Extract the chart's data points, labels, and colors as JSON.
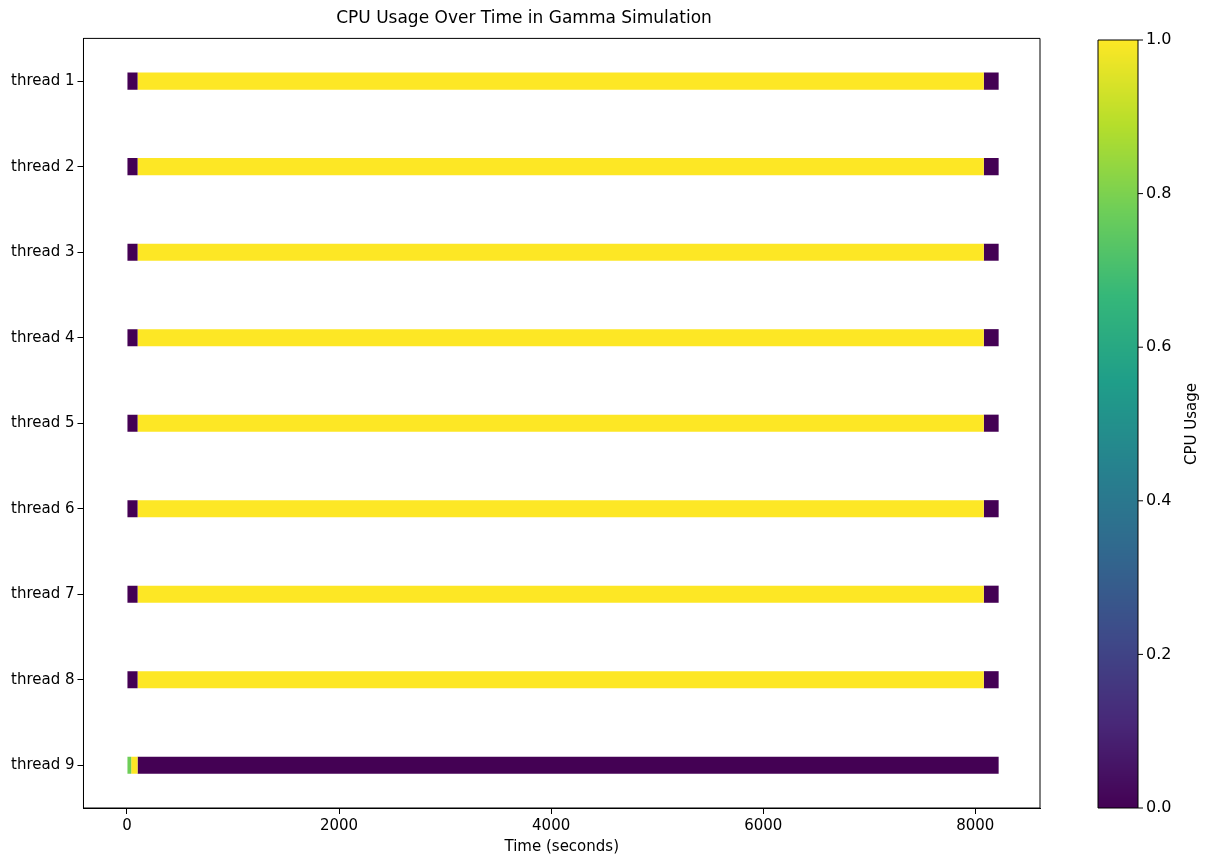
{
  "chart_data": {
    "type": "bar",
    "orientation": "horizontal",
    "stacked": true,
    "title": "CPU Usage Over Time in Gamma Simulation",
    "xlabel": "Time (seconds)",
    "clabel": "CPU Usage",
    "categories": [
      "thread 1",
      "thread 2",
      "thread 3",
      "thread 4",
      "thread 5",
      "thread 6",
      "thread 7",
      "thread 8",
      "thread 9"
    ],
    "series": [
      {
        "values": [
          null,
          null,
          null,
          null,
          null,
          null,
          null,
          null,
          40
        ],
        "colors": [
          null,
          null,
          null,
          null,
          null,
          null,
          null,
          null,
          "#6ece58"
        ]
      },
      {
        "values": [
          100,
          100,
          100,
          100,
          100,
          100,
          100,
          100,
          60
        ],
        "colors": [
          "#440154",
          "#440154",
          "#440154",
          "#440154",
          "#440154",
          "#440154",
          "#440154",
          "#440154",
          "#fde725"
        ]
      },
      {
        "values": [
          7980,
          7980,
          7980,
          7980,
          7980,
          7980,
          7980,
          7980,
          8120
        ],
        "colors": [
          "#fde725",
          "#fde725",
          "#fde725",
          "#fde725",
          "#fde725",
          "#fde725",
          "#fde725",
          "#fde725",
          "#440154"
        ]
      },
      {
        "values": [
          140,
          140,
          140,
          140,
          140,
          140,
          140,
          140,
          null
        ],
        "colors": [
          "#440154",
          "#440154",
          "#440154",
          "#440154",
          "#440154",
          "#440154",
          "#440154",
          "#440154",
          null
        ]
      }
    ],
    "xlim": [
      -410,
      8610
    ],
    "xticks": [
      0,
      2000,
      4000,
      6000,
      8000
    ],
    "clim": [
      0,
      1
    ],
    "cticks": [
      {
        "value": 0,
        "label": "0.0"
      },
      {
        "value": 0.2,
        "label": "0.2"
      },
      {
        "value": 0.4,
        "label": "0.4"
      },
      {
        "value": 0.6,
        "label": "0.6"
      },
      {
        "value": 0.8,
        "label": "0.8"
      },
      {
        "value": 1,
        "label": "1.0"
      }
    ],
    "grid": false,
    "legend": false
  }
}
